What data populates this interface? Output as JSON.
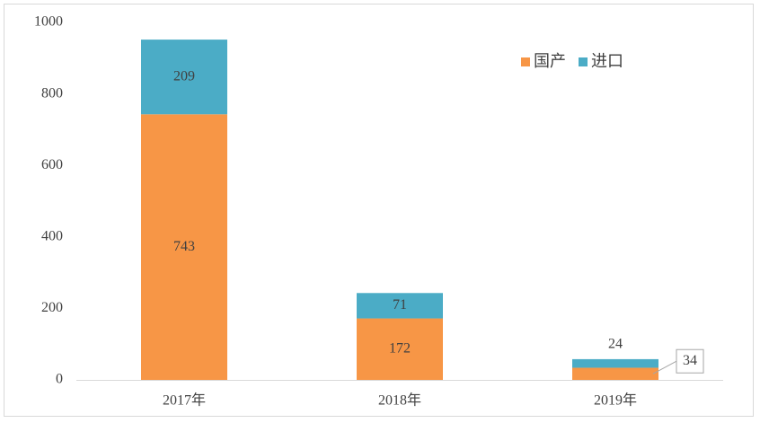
{
  "chart_data": {
    "type": "stacked_bar",
    "categories": [
      "2017年",
      "2018年",
      "2019年"
    ],
    "series": [
      {
        "name": "国产",
        "color": "#f79646",
        "values": [
          743,
          172,
          34
        ]
      },
      {
        "name": "进口",
        "color": "#4bacc6",
        "values": [
          209,
          71,
          24
        ]
      }
    ],
    "ylim": [
      0,
      1000
    ],
    "yticks": [
      0,
      200,
      400,
      600,
      800,
      1000
    ],
    "legend": "top-right",
    "grid": false
  }
}
